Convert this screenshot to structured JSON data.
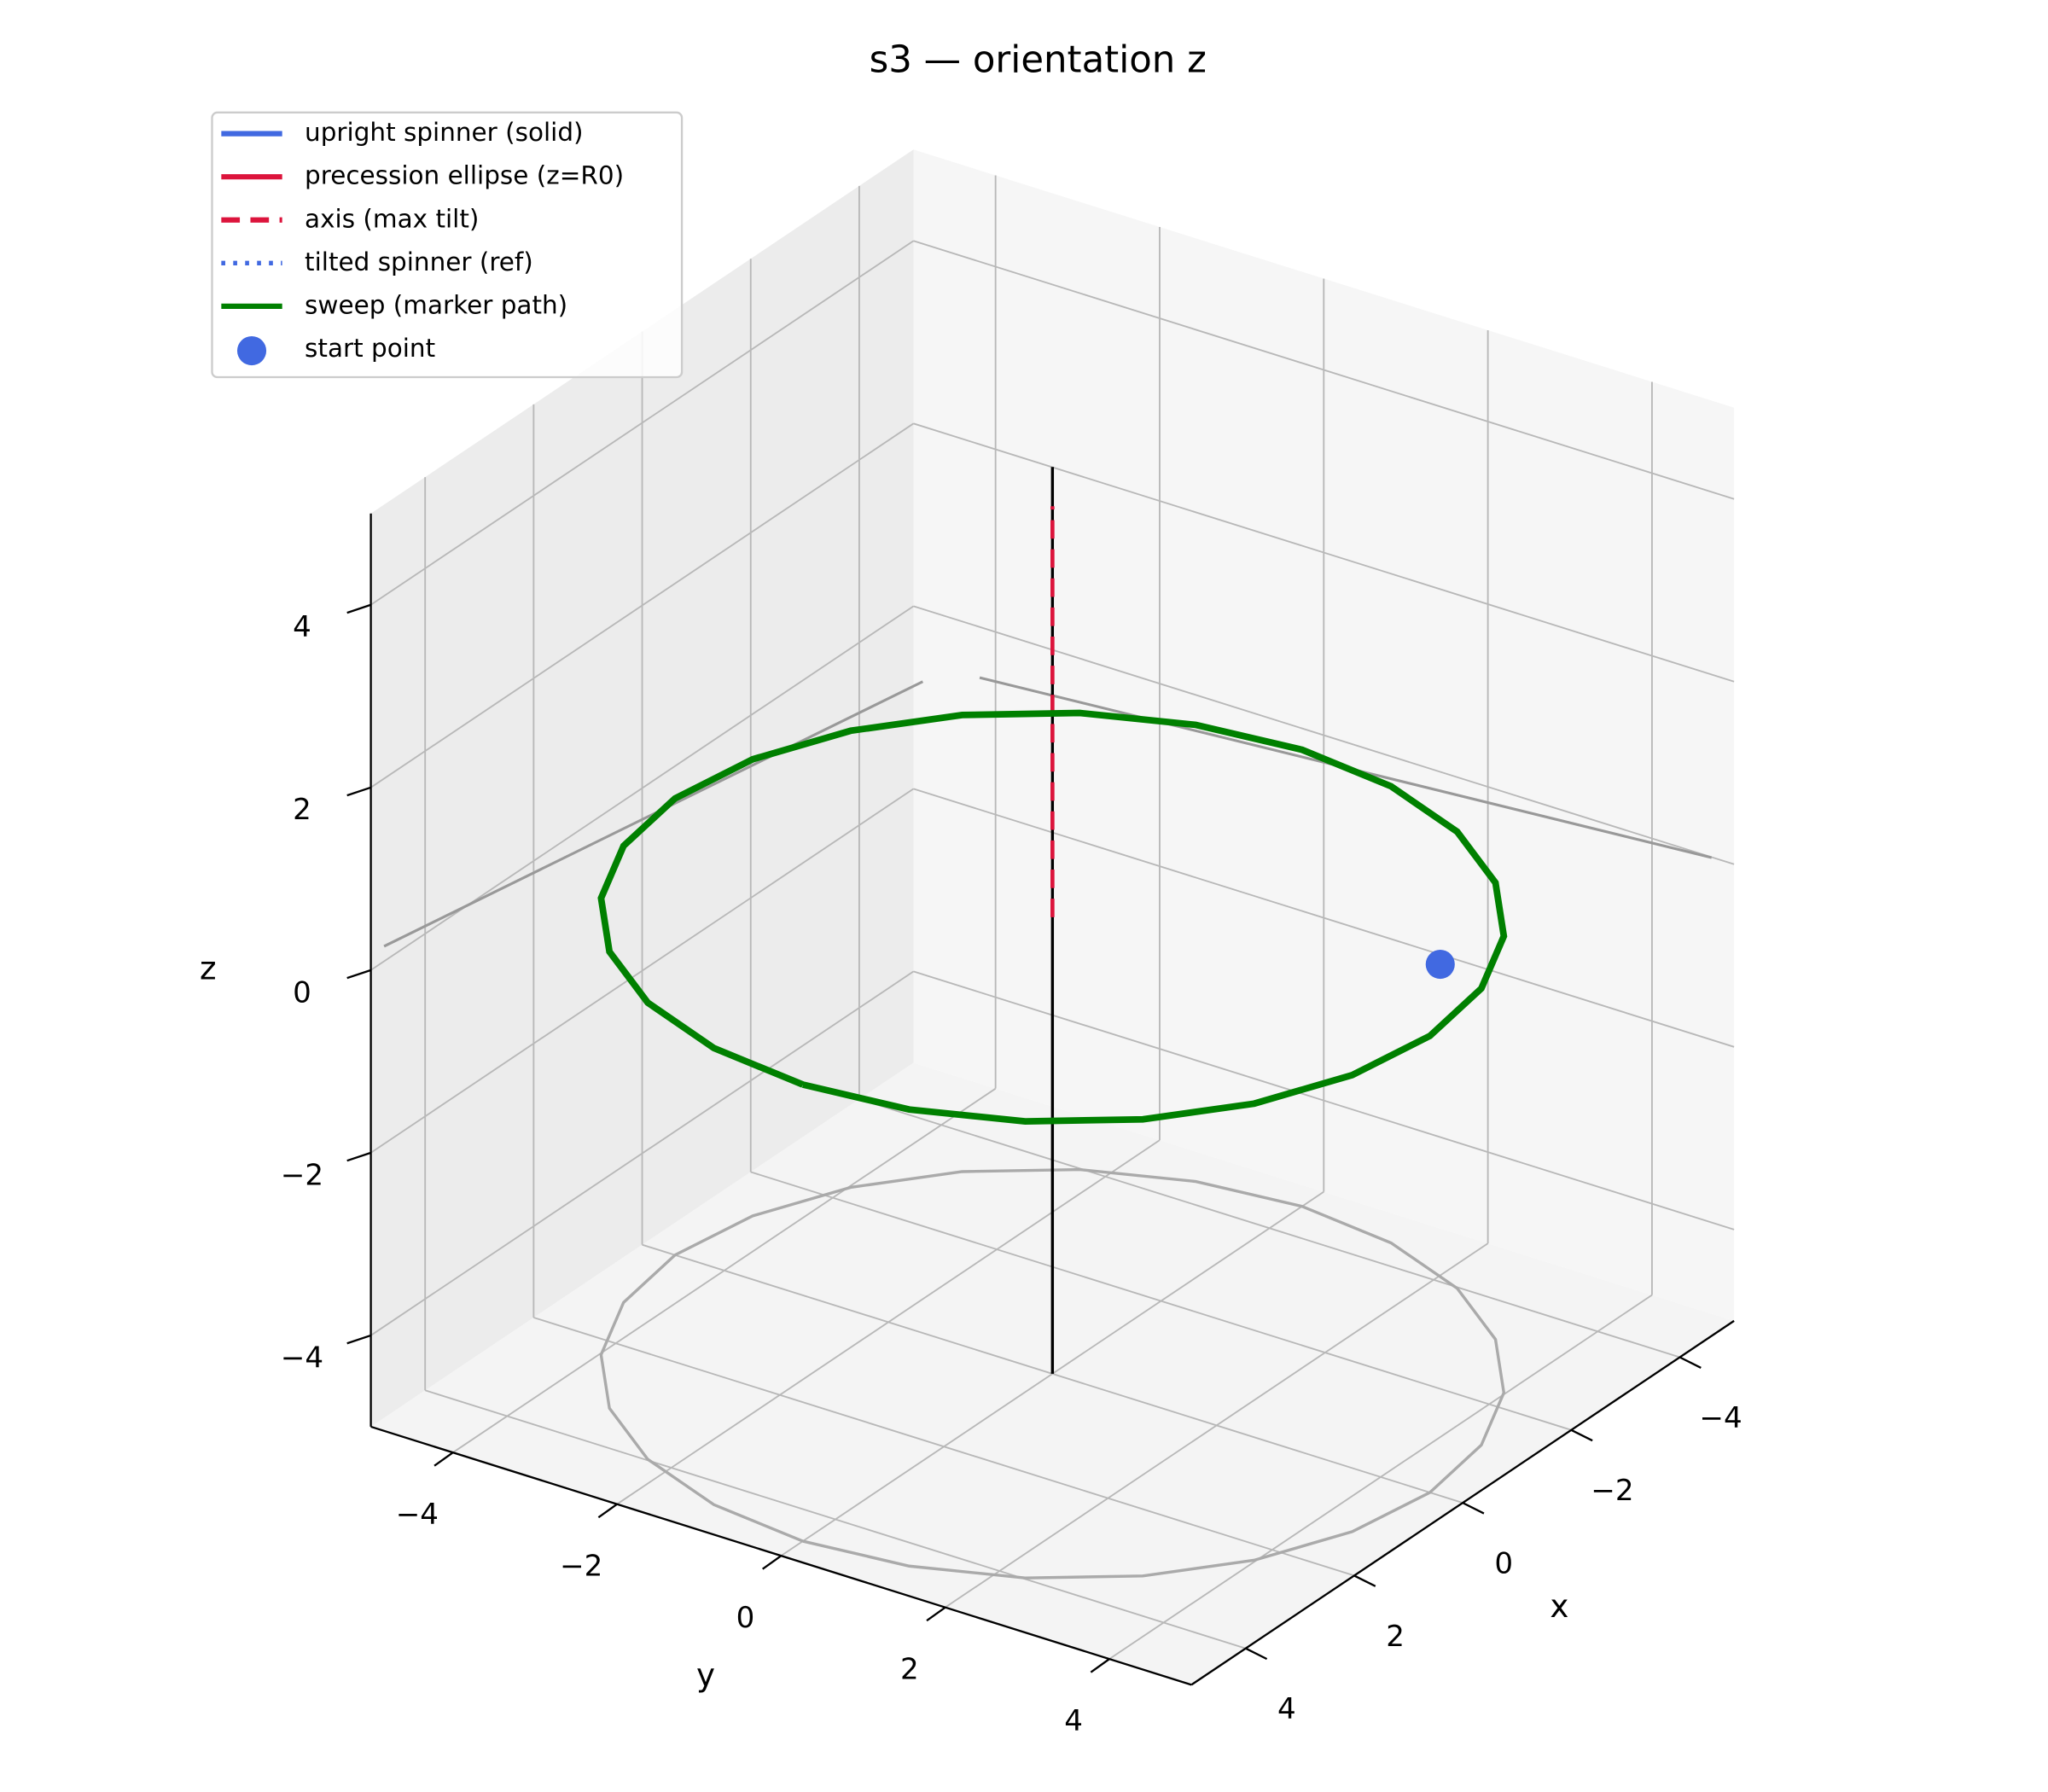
{
  "chart_data": {
    "type": "line3d",
    "title": "s3 — orientation z",
    "xlabel": "x",
    "ylabel": "y",
    "zlabel": "z",
    "xlim": [
      -5,
      5
    ],
    "ylim": [
      -5,
      5
    ],
    "zlim": [
      -5,
      5
    ],
    "xticks": [
      {
        "value": -4,
        "label": "−4"
      },
      {
        "value": -2,
        "label": "−2"
      },
      0,
      2,
      4
    ],
    "yticks": [
      {
        "value": -4,
        "label": "−4"
      },
      {
        "value": -2,
        "label": "−2"
      },
      0,
      2,
      4
    ],
    "zticks": [
      {
        "value": -4,
        "label": "−4"
      },
      {
        "value": -2,
        "label": "−2"
      },
      0,
      2,
      4
    ],
    "grid": true,
    "legend": "upper left",
    "series": [
      {
        "name": "upright spinner (solid)",
        "color": "#4169e1",
        "linestyle": "solid"
      },
      {
        "name": "precession ellipse (z=R0)",
        "color": "#dc143c",
        "linestyle": "solid"
      },
      {
        "name": "axis (max tilt)",
        "color": "#dc143c",
        "linestyle": "dashed",
        "x": [
          0,
          0
        ],
        "y": [
          0,
          0
        ],
        "z": [
          0,
          4.5
        ]
      },
      {
        "name": "tilted spinner (ref)",
        "color": "#4169e1",
        "linestyle": "dotted"
      },
      {
        "name": "sweep (marker path)",
        "color": "#008000",
        "linestyle": "solid",
        "x": [
          4.6,
          4.44,
          3.98,
          3.25,
          2.3,
          1.19,
          0,
          -1.19,
          -2.3,
          -3.25,
          -3.98,
          -4.44,
          -4.6,
          -4.44,
          -3.98,
          -3.25,
          -2.3,
          -1.19,
          0,
          1.19,
          2.3,
          3.25,
          3.98,
          4.44,
          4.6
        ],
        "y": [
          0,
          1.19,
          2.3,
          3.25,
          3.98,
          4.44,
          4.6,
          4.44,
          3.98,
          3.25,
          2.3,
          1.19,
          0,
          -1.19,
          -2.3,
          -3.25,
          -3.98,
          -4.44,
          -4.6,
          -4.44,
          -3.98,
          -3.25,
          -2.3,
          -1.19,
          0
        ],
        "z": [
          0,
          0,
          0,
          0,
          0,
          0,
          0,
          0,
          0,
          0,
          0,
          0,
          0,
          0,
          0,
          0,
          0,
          0,
          0,
          0,
          0,
          0,
          0,
          0,
          0
        ]
      },
      {
        "name": "start point",
        "color": "#4169e1",
        "marker": "o",
        "x": [
          -1.4
        ],
        "y": [
          3.8
        ],
        "z": [
          0
        ]
      },
      {
        "color": "#000000",
        "linestyle": "solid",
        "x": [
          0,
          0
        ],
        "y": [
          0,
          0
        ],
        "z": [
          -5,
          4.93
        ]
      },
      {
        "color": "#aaaaaa",
        "linestyle": "solid",
        "x": [
          4.6,
          4.44,
          3.98,
          3.25,
          2.3,
          1.19,
          0,
          -1.19,
          -2.3,
          -3.25,
          -3.98,
          -4.44,
          -4.6,
          -4.44,
          -3.98,
          -3.25,
          -2.3,
          -1.19,
          0,
          1.19,
          2.3,
          3.25,
          3.98,
          4.44,
          4.6
        ],
        "y": [
          0,
          1.19,
          2.3,
          3.25,
          3.98,
          4.44,
          4.6,
          4.44,
          3.98,
          3.25,
          2.3,
          1.19,
          0,
          -1.19,
          -2.3,
          -3.25,
          -3.98,
          -4.44,
          -4.6,
          -4.44,
          -3.98,
          -3.25,
          -2.3,
          -1.19,
          0
        ],
        "z": [
          -5,
          -5,
          -5,
          -5,
          -5,
          -5,
          -5,
          -5,
          -5,
          -5,
          -5,
          -5,
          -5,
          -5,
          -5,
          -5,
          -5,
          -5,
          -5,
          -5,
          -5,
          -5,
          -5,
          -5,
          -5
        ]
      }
    ]
  }
}
